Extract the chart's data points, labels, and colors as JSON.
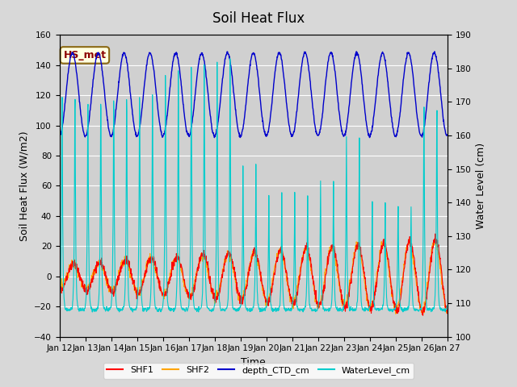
{
  "title": "Soil Heat Flux",
  "xlabel": "Time",
  "ylabel_left": "Soil Heat Flux (W/m2)",
  "ylabel_right": "Water Level (cm)",
  "ylim_left": [
    -40,
    160
  ],
  "ylim_right": [
    100,
    190
  ],
  "yticks_left": [
    -40,
    -20,
    0,
    20,
    40,
    60,
    80,
    100,
    120,
    140,
    160
  ],
  "yticks_right": [
    100,
    110,
    120,
    130,
    140,
    150,
    160,
    170,
    180,
    190
  ],
  "xtick_labels": [
    "Jan 12",
    "Jan 13",
    "Jan 14",
    "Jan 15",
    "Jan 16",
    "Jan 17",
    "Jan 18",
    "Jan 19",
    "Jan 20",
    "Jan 21",
    "Jan 22",
    "Jan 23",
    "Jan 24",
    "Jan 25",
    "Jan 26",
    "Jan 27"
  ],
  "n_days": 15,
  "pts_per_day": 96,
  "shf1_color": "#FF0000",
  "shf2_color": "#FFA500",
  "depth_color": "#0000CC",
  "water_color": "#00CCCC",
  "bg_color": "#D8D8D8",
  "plot_bg_color": "#D0D0D0",
  "annotation_text": "HS_met",
  "annotation_bg": "#FFFFE0",
  "annotation_border": "#8B6914",
  "annotation_text_color": "#8B0000",
  "legend_labels": [
    "SHF1",
    "SHF2",
    "depth_CTD_cm",
    "WaterLevel_cm"
  ],
  "legend_colors": [
    "#FF0000",
    "#FFA500",
    "#0000CC",
    "#00CCCC"
  ],
  "title_fontsize": 12,
  "axis_label_fontsize": 9,
  "tick_fontsize": 7.5
}
